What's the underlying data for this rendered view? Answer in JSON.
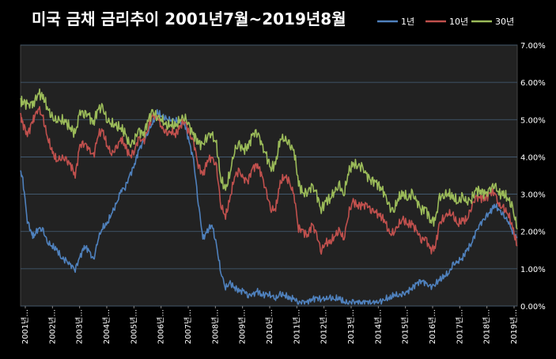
{
  "chart_data": {
    "type": "line",
    "title": "미국 금채 금리추이  2001년7월~2019년8월",
    "xlabel": "",
    "ylabel": "",
    "ylim": [
      0,
      7
    ],
    "y_ticks": [
      "0.00%",
      "1.00%",
      "2.00%",
      "3.00%",
      "4.00%",
      "5.00%",
      "6.00%",
      "7.00%"
    ],
    "y_axis_side": "right",
    "grid": true,
    "legend_position": "top-right",
    "x_ticks": [
      "2001년...",
      "2002년...",
      "2003년...",
      "2004년...",
      "2005년...",
      "2006년...",
      "2007년...",
      "2008년...",
      "2009년...",
      "2010년...",
      "2011년...",
      "2012년...",
      "2013년...",
      "2014년...",
      "2015년...",
      "2016년...",
      "2017년...",
      "2018년...",
      "2019년..."
    ],
    "x_start": 2001.5,
    "x_end": 2019.67,
    "x": [
      2001.5,
      2001.58,
      2001.75,
      2001.92,
      2002.0,
      2002.17,
      2002.33,
      2002.5,
      2002.67,
      2002.83,
      2003.0,
      2003.17,
      2003.33,
      2003.5,
      2003.67,
      2003.83,
      2004.0,
      2004.17,
      2004.33,
      2004.5,
      2004.67,
      2004.83,
      2005.0,
      2005.17,
      2005.33,
      2005.5,
      2005.67,
      2005.83,
      2006.0,
      2006.17,
      2006.33,
      2006.5,
      2006.67,
      2006.83,
      2007.0,
      2007.17,
      2007.33,
      2007.5,
      2007.67,
      2007.83,
      2008.0,
      2008.17,
      2008.33,
      2008.5,
      2008.67,
      2008.83,
      2009.0,
      2009.17,
      2009.33,
      2009.5,
      2009.67,
      2009.83,
      2010.0,
      2010.17,
      2010.33,
      2010.5,
      2010.67,
      2010.83,
      2011.0,
      2011.17,
      2011.33,
      2011.5,
      2011.67,
      2011.83,
      2012.0,
      2012.17,
      2012.33,
      2012.5,
      2012.67,
      2012.83,
      2013.0,
      2013.17,
      2013.33,
      2013.5,
      2013.67,
      2013.83,
      2014.0,
      2014.17,
      2014.33,
      2014.5,
      2014.67,
      2014.83,
      2015.0,
      2015.17,
      2015.33,
      2015.5,
      2015.67,
      2015.83,
      2016.0,
      2016.17,
      2016.33,
      2016.5,
      2016.67,
      2016.83,
      2017.0,
      2017.17,
      2017.33,
      2017.5,
      2017.67,
      2017.83,
      2018.0,
      2018.17,
      2018.33,
      2018.5,
      2018.67,
      2018.83,
      2019.0,
      2019.17,
      2019.33,
      2019.5,
      2019.67
    ],
    "series": [
      {
        "name": "1년",
        "color": "#4f81bd",
        "values": [
          3.6,
          3.4,
          2.3,
          1.9,
          1.9,
          2.1,
          2.0,
          1.7,
          1.6,
          1.5,
          1.3,
          1.2,
          1.1,
          1.0,
          1.3,
          1.6,
          1.5,
          1.2,
          1.8,
          2.1,
          2.2,
          2.5,
          2.7,
          3.1,
          3.2,
          3.5,
          3.8,
          4.2,
          4.4,
          4.7,
          4.9,
          5.2,
          5.1,
          5.0,
          5.0,
          5.0,
          4.9,
          4.9,
          4.4,
          3.9,
          2.8,
          1.8,
          2.0,
          2.2,
          1.6,
          0.9,
          0.5,
          0.6,
          0.5,
          0.4,
          0.4,
          0.3,
          0.3,
          0.4,
          0.3,
          0.3,
          0.3,
          0.2,
          0.3,
          0.3,
          0.2,
          0.2,
          0.1,
          0.1,
          0.1,
          0.2,
          0.2,
          0.2,
          0.2,
          0.2,
          0.2,
          0.2,
          0.1,
          0.1,
          0.1,
          0.1,
          0.1,
          0.1,
          0.1,
          0.1,
          0.1,
          0.2,
          0.2,
          0.3,
          0.3,
          0.3,
          0.4,
          0.5,
          0.6,
          0.7,
          0.6,
          0.5,
          0.6,
          0.7,
          0.8,
          0.9,
          1.1,
          1.2,
          1.3,
          1.5,
          1.7,
          2.0,
          2.2,
          2.4,
          2.5,
          2.7,
          2.6,
          2.4,
          2.3,
          2.0,
          1.8
        ]
      },
      {
        "name": "10년",
        "color": "#c0504d",
        "values": [
          5.1,
          4.9,
          4.6,
          4.9,
          5.1,
          5.3,
          5.0,
          4.5,
          4.1,
          3.9,
          4.0,
          3.9,
          3.8,
          3.5,
          4.3,
          4.4,
          4.2,
          4.0,
          4.6,
          4.7,
          4.3,
          4.1,
          4.2,
          4.5,
          4.3,
          4.0,
          4.2,
          4.5,
          4.4,
          4.8,
          5.1,
          5.1,
          4.8,
          4.6,
          4.7,
          4.6,
          4.8,
          5.0,
          4.6,
          4.4,
          3.8,
          3.5,
          3.9,
          4.0,
          3.7,
          2.7,
          2.4,
          2.9,
          3.5,
          3.6,
          3.4,
          3.4,
          3.7,
          3.8,
          3.5,
          3.0,
          2.6,
          2.6,
          3.3,
          3.5,
          3.3,
          3.0,
          2.1,
          2.0,
          1.9,
          2.2,
          1.9,
          1.5,
          1.7,
          1.7,
          1.9,
          2.0,
          1.8,
          2.5,
          2.8,
          2.7,
          2.7,
          2.7,
          2.6,
          2.5,
          2.4,
          2.3,
          1.9,
          2.0,
          2.2,
          2.3,
          2.2,
          2.2,
          2.0,
          1.8,
          1.8,
          1.5,
          1.6,
          2.2,
          2.4,
          2.5,
          2.4,
          2.2,
          2.3,
          2.3,
          2.7,
          2.9,
          2.9,
          2.9,
          3.0,
          3.1,
          2.7,
          2.6,
          2.5,
          2.1,
          1.6
        ]
      },
      {
        "name": "30년",
        "color": "#9bbb59",
        "values": [
          5.5,
          5.5,
          5.4,
          5.4,
          5.5,
          5.7,
          5.6,
          5.3,
          5.0,
          5.0,
          5.0,
          4.9,
          4.8,
          4.6,
          5.2,
          5.2,
          5.1,
          4.9,
          5.3,
          5.3,
          5.0,
          4.9,
          4.8,
          4.8,
          4.6,
          4.3,
          4.5,
          4.7,
          4.6,
          5.0,
          5.2,
          5.1,
          5.0,
          4.8,
          4.9,
          4.8,
          5.0,
          5.1,
          4.8,
          4.6,
          4.4,
          4.3,
          4.6,
          4.6,
          4.3,
          3.4,
          3.1,
          3.6,
          4.2,
          4.3,
          4.2,
          4.3,
          4.6,
          4.7,
          4.3,
          4.0,
          3.7,
          3.8,
          4.5,
          4.5,
          4.3,
          4.2,
          3.3,
          3.0,
          3.1,
          3.2,
          3.0,
          2.6,
          2.8,
          2.9,
          3.1,
          3.2,
          3.0,
          3.6,
          3.8,
          3.8,
          3.7,
          3.5,
          3.4,
          3.3,
          3.2,
          3.0,
          2.6,
          2.6,
          2.9,
          3.0,
          2.9,
          3.0,
          2.8,
          2.6,
          2.6,
          2.3,
          2.3,
          2.9,
          3.0,
          3.0,
          2.9,
          2.8,
          2.9,
          2.8,
          2.9,
          3.1,
          3.1,
          3.0,
          3.1,
          3.3,
          3.0,
          3.0,
          2.9,
          2.6,
          2.1
        ]
      }
    ]
  }
}
